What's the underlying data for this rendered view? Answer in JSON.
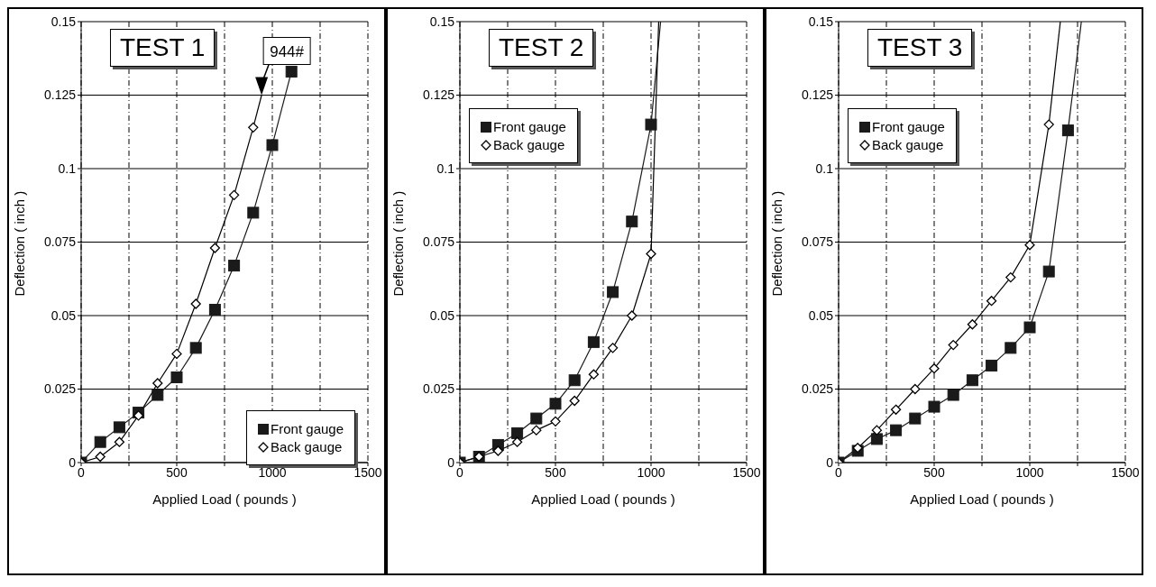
{
  "chart_data": [
    {
      "type": "line",
      "title": "TEST 1",
      "xlabel": "Applied Load ( pounds )",
      "ylabel": "Deflection ( inch )",
      "xlim": [
        0,
        1500
      ],
      "ylim": [
        0,
        0.15
      ],
      "xticks": [
        0,
        {
          "value": 250,
          "label": null
        },
        500,
        {
          "value": 750,
          "label": null
        },
        1000,
        {
          "value": 1250,
          "label": null
        },
        1500
      ],
      "yticks": [
        0,
        0.025,
        0.05,
        0.075,
        0.1,
        0.125,
        0.15
      ],
      "grid": true,
      "legend": "bottom right",
      "annotations": [
        {
          "text": "944#",
          "x": 944,
          "y": 0.125
        }
      ],
      "series": [
        {
          "name": "Front gauge",
          "color": "#1a1a1a",
          "marker": "square",
          "x": [
            0,
            100,
            200,
            300,
            400,
            500,
            600,
            700,
            800,
            900,
            1000,
            1100
          ],
          "values": [
            0,
            0.007,
            0.012,
            0.017,
            0.023,
            0.029,
            0.039,
            0.052,
            0.067,
            0.085,
            0.108,
            0.133
          ]
        },
        {
          "name": "Back gauge",
          "color": "#000000",
          "marker": "diamond",
          "x": [
            0,
            100,
            200,
            300,
            400,
            500,
            600,
            700,
            800,
            900
          ],
          "values": [
            0,
            0.002,
            0.007,
            0.016,
            0.027,
            0.037,
            0.054,
            0.073,
            0.091,
            0.114
          ]
        },
        {
          "color": "#000000",
          "marker": "none",
          "x": [
            900,
            944
          ],
          "values": [
            0.114,
            0.125
          ]
        }
      ]
    },
    {
      "type": "line",
      "title": "TEST 2",
      "xlabel": "Applied Load ( pounds )",
      "ylabel": "Deflection ( inch )",
      "xlim": [
        0,
        1500
      ],
      "ylim": [
        0,
        0.15
      ],
      "xticks": [
        0,
        {
          "value": 250,
          "label": null
        },
        500,
        {
          "value": 750,
          "label": null
        },
        1000,
        {
          "value": 1250,
          "label": null
        },
        1500
      ],
      "yticks": [
        0,
        0.025,
        0.05,
        0.075,
        0.1,
        0.125,
        0.15
      ],
      "grid": true,
      "legend": "top left",
      "series": [
        {
          "name": "Front gauge",
          "color": "#1a1a1a",
          "marker": "square",
          "x": [
            0,
            100,
            200,
            300,
            400,
            500,
            600,
            700,
            800,
            900,
            1000
          ],
          "values": [
            0,
            0.002,
            0.006,
            0.01,
            0.015,
            0.02,
            0.028,
            0.041,
            0.058,
            0.082,
            0.115
          ]
        },
        {
          "name": "Back gauge",
          "color": "#000000",
          "marker": "diamond",
          "x": [
            0,
            100,
            200,
            300,
            400,
            500,
            600,
            700,
            800,
            900,
            1000
          ],
          "values": [
            0,
            0.002,
            0.004,
            0.007,
            0.011,
            0.014,
            0.021,
            0.03,
            0.039,
            0.05,
            0.071
          ]
        },
        {
          "color": "#1a1a1a",
          "marker": "none",
          "x": [
            1000,
            1050
          ],
          "values": [
            0.115,
            0.15
          ]
        },
        {
          "color": "#000000",
          "marker": "none",
          "x": [
            1000,
            1040
          ],
          "values": [
            0.071,
            0.15
          ]
        }
      ]
    },
    {
      "type": "line",
      "title": "TEST 3",
      "xlabel": "Applied Load ( pounds )",
      "ylabel": "Deflection ( inch )",
      "xlim": [
        0,
        1500
      ],
      "ylim": [
        0,
        0.15
      ],
      "xticks": [
        0,
        {
          "value": 250,
          "label": null
        },
        500,
        {
          "value": 750,
          "label": null
        },
        1000,
        {
          "value": 1250,
          "label": null
        },
        1500
      ],
      "yticks": [
        0,
        0.025,
        0.05,
        0.075,
        0.1,
        0.125,
        0.15
      ],
      "grid": true,
      "legend": "top left",
      "series": [
        {
          "name": "Front gauge",
          "color": "#1a1a1a",
          "marker": "square",
          "x": [
            0,
            100,
            200,
            300,
            400,
            500,
            600,
            700,
            800,
            900,
            1000,
            1100,
            1200
          ],
          "values": [
            0,
            0.004,
            0.008,
            0.011,
            0.015,
            0.019,
            0.023,
            0.028,
            0.033,
            0.039,
            0.046,
            0.065,
            0.113
          ]
        },
        {
          "name": "Back gauge",
          "color": "#000000",
          "marker": "diamond",
          "x": [
            0,
            100,
            200,
            300,
            400,
            500,
            600,
            700,
            800,
            900,
            1000,
            1100
          ],
          "values": [
            0,
            0.005,
            0.011,
            0.018,
            0.025,
            0.032,
            0.04,
            0.047,
            0.055,
            0.063,
            0.074,
            0.115
          ]
        },
        {
          "color": "#1a1a1a",
          "marker": "none",
          "x": [
            1200,
            1270
          ],
          "values": [
            0.113,
            0.15
          ]
        },
        {
          "color": "#000000",
          "marker": "none",
          "x": [
            1100,
            1160
          ],
          "values": [
            0.115,
            0.15
          ]
        }
      ]
    }
  ]
}
